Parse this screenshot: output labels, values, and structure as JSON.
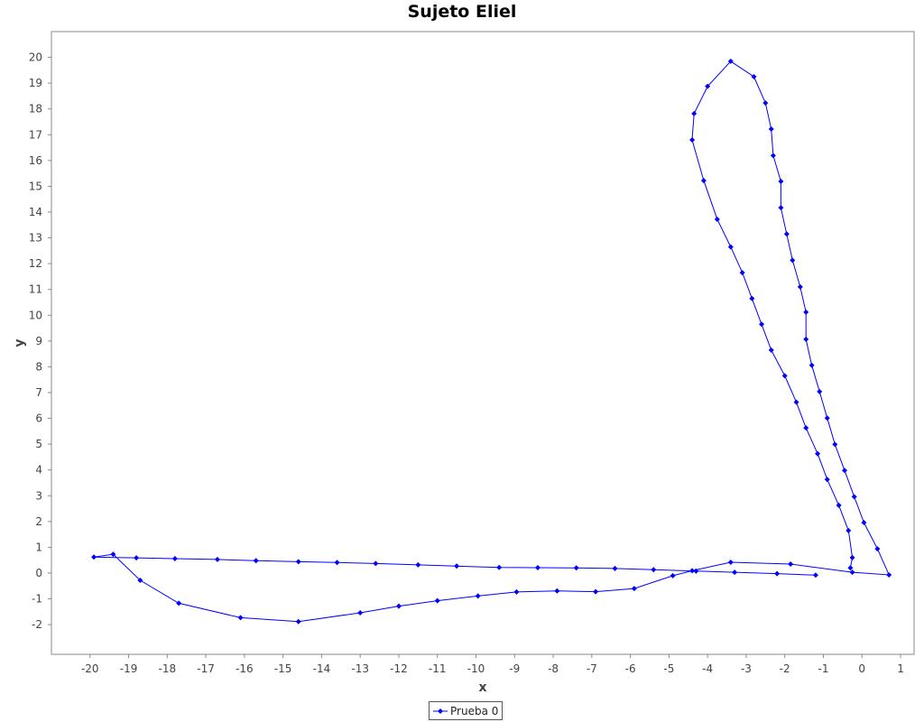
{
  "chart_data": {
    "type": "line",
    "title": "Sujeto Eliel",
    "xlabel": "x",
    "ylabel": "y",
    "xlim": [
      -21,
      1.35
    ],
    "ylim": [
      -3.15,
      21
    ],
    "x_ticks": [
      -20,
      -19,
      -18,
      -17,
      -16,
      -15,
      -14,
      -13,
      -12,
      -11,
      -10,
      -9,
      -8,
      -7,
      -6,
      -5,
      -4,
      -3,
      -2,
      -1,
      0,
      1
    ],
    "y_ticks": [
      -2,
      -1,
      0,
      1,
      2,
      3,
      4,
      5,
      6,
      7,
      8,
      9,
      10,
      11,
      12,
      13,
      14,
      15,
      16,
      17,
      18,
      19,
      20
    ],
    "grid": false,
    "legend_position": "bottom-center",
    "series": [
      {
        "name": "Prueba 0",
        "color": "#0000ff",
        "marker": "diamond",
        "points": [
          [
            -1.2,
            -0.08
          ],
          [
            -2.2,
            -0.02
          ],
          [
            -3.3,
            0.03
          ],
          [
            -4.3,
            0.08
          ],
          [
            -5.4,
            0.13
          ],
          [
            -6.4,
            0.18
          ],
          [
            -7.4,
            0.2
          ],
          [
            -8.4,
            0.21
          ],
          [
            -9.4,
            0.22
          ],
          [
            -10.5,
            0.27
          ],
          [
            -11.5,
            0.32
          ],
          [
            -12.6,
            0.37
          ],
          [
            -13.6,
            0.41
          ],
          [
            -14.6,
            0.44
          ],
          [
            -15.7,
            0.48
          ],
          [
            -16.7,
            0.53
          ],
          [
            -17.8,
            0.56
          ],
          [
            -18.8,
            0.59
          ],
          [
            -19.9,
            0.62
          ],
          [
            -19.4,
            0.73
          ],
          [
            -18.7,
            -0.28
          ],
          [
            -17.7,
            -1.17
          ],
          [
            -16.1,
            -1.73
          ],
          [
            -14.6,
            -1.88
          ],
          [
            -13.0,
            -1.54
          ],
          [
            -12.0,
            -1.28
          ],
          [
            -11.0,
            -1.07
          ],
          [
            -9.95,
            -0.89
          ],
          [
            -8.95,
            -0.73
          ],
          [
            -7.9,
            -0.69
          ],
          [
            -6.9,
            -0.72
          ],
          [
            -5.9,
            -0.6
          ],
          [
            -4.9,
            -0.1
          ],
          [
            -4.4,
            0.09
          ],
          [
            -3.4,
            0.42
          ],
          [
            -1.85,
            0.35
          ],
          [
            -0.25,
            0.03
          ],
          [
            0.7,
            -0.07
          ],
          [
            0.4,
            0.94
          ],
          [
            0.05,
            1.96
          ],
          [
            -0.2,
            2.96
          ],
          [
            -0.45,
            3.98
          ],
          [
            -0.7,
            4.99
          ],
          [
            -0.9,
            6.01
          ],
          [
            -1.1,
            7.04
          ],
          [
            -1.3,
            8.06
          ],
          [
            -1.45,
            9.07
          ],
          [
            -1.45,
            10.12
          ],
          [
            -1.6,
            11.1
          ],
          [
            -1.8,
            12.13
          ],
          [
            -1.95,
            13.15
          ],
          [
            -2.1,
            14.17
          ],
          [
            -2.1,
            15.19
          ],
          [
            -2.3,
            16.19
          ],
          [
            -2.35,
            17.22
          ],
          [
            -2.5,
            18.23
          ],
          [
            -2.8,
            19.25
          ],
          [
            -3.4,
            19.85
          ],
          [
            -4.0,
            18.88
          ],
          [
            -4.35,
            17.82
          ],
          [
            -4.4,
            16.8
          ],
          [
            -4.1,
            15.22
          ],
          [
            -3.75,
            13.72
          ],
          [
            -3.4,
            12.65
          ],
          [
            -3.1,
            11.65
          ],
          [
            -2.85,
            10.65
          ],
          [
            -2.6,
            9.65
          ],
          [
            -2.35,
            8.65
          ],
          [
            -2.0,
            7.65
          ],
          [
            -1.7,
            6.63
          ],
          [
            -1.45,
            5.63
          ],
          [
            -1.15,
            4.63
          ],
          [
            -0.9,
            3.63
          ],
          [
            -0.6,
            2.63
          ],
          [
            -0.35,
            1.65
          ],
          [
            -0.25,
            0.6
          ],
          [
            -0.3,
            0.2
          ]
        ]
      }
    ]
  }
}
